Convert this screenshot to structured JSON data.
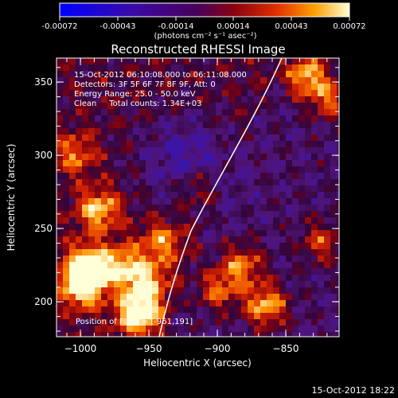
{
  "title": "Reconstructed RHESSI Image",
  "colorbar": {
    "ticks": [
      "-0.00072",
      "-0.00043",
      "-0.00014",
      "0.00014",
      "0.00043",
      "0.00072"
    ],
    "units": "(photons cm⁻² s⁻¹ asec⁻²)"
  },
  "annotations": {
    "time_range": "15-Oct-2012 06:10:08.000 to 06:11:08.000",
    "detectors": "Detectors: 3F 5F 6F 7F 8F 9F, Att: 0",
    "energy": "Energy Range: 25.0 - 50.0 keV",
    "clean": "Clean     Total counts: 1.34E+03",
    "position": "Position of Flare = [-961,191]"
  },
  "axes": {
    "xlabel": "Heliocentric X (arcsec)",
    "ylabel": "Heliocentric Y (arcsec)",
    "xticks": [
      "−1000",
      "−950",
      "−900",
      "−850"
    ],
    "yticks": [
      "200",
      "250",
      "300",
      "350"
    ]
  },
  "footer": "15-Oct-2012 18:22",
  "colors": {
    "background": "#000000",
    "limb": "#ffffff"
  }
}
